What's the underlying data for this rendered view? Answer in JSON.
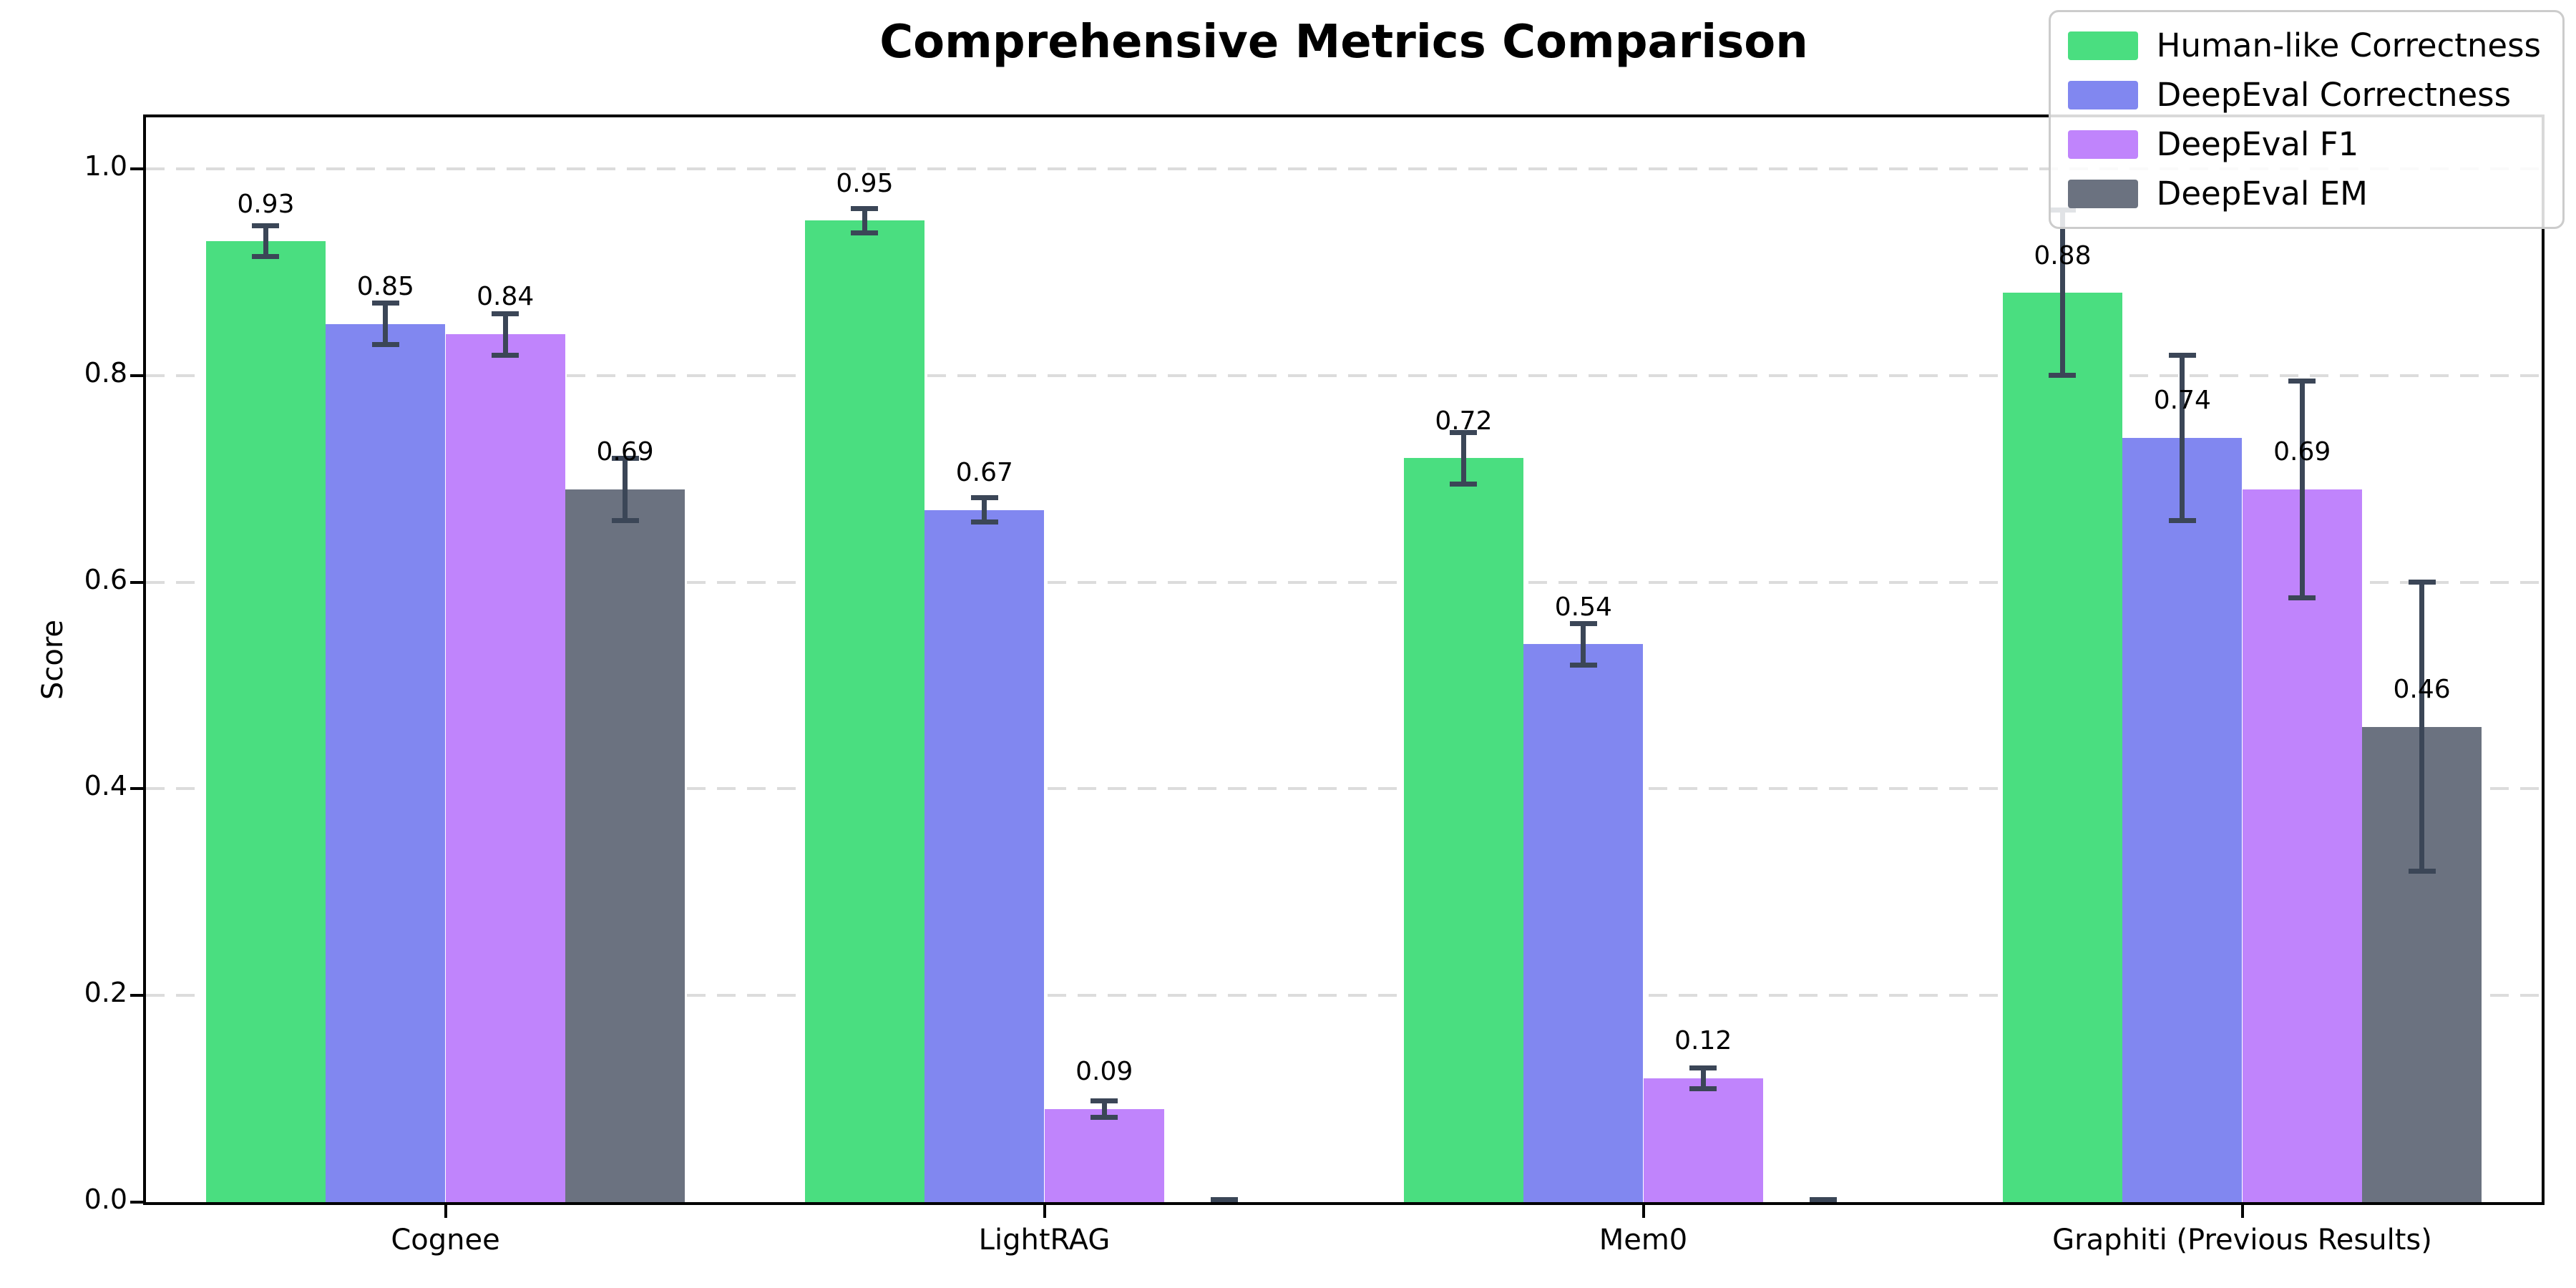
{
  "chart_data": {
    "type": "bar",
    "title": "Comprehensive Metrics Comparison",
    "xlabel": "",
    "ylabel": "Score",
    "ylim": [
      0,
      1.05
    ],
    "grid": "horizontal-dashed",
    "legend_position": "upper-right",
    "ytick_labels": [
      "0.0",
      "0.2",
      "0.4",
      "0.6",
      "0.8",
      "1.0"
    ],
    "yticks": [
      0.0,
      0.2,
      0.4,
      0.6,
      0.8,
      1.0
    ],
    "categories": [
      "Cognee",
      "LightRAG",
      "Mem0",
      "Graphiti (Previous Results)"
    ],
    "series": [
      {
        "name": "Human-like Correctness",
        "color": "#4ade80",
        "values": [
          0.93,
          0.95,
          0.72,
          0.88
        ],
        "errors": [
          0.015,
          0.012,
          0.025,
          0.08
        ],
        "labels": [
          "0.93",
          "0.95",
          "0.72",
          "0.88"
        ]
      },
      {
        "name": "DeepEval Correctness",
        "color": "#8187f0",
        "values": [
          0.85,
          0.67,
          0.54,
          0.74
        ],
        "errors": [
          0.02,
          0.012,
          0.02,
          0.08
        ],
        "labels": [
          "0.85",
          "0.67",
          "0.54",
          "0.74"
        ]
      },
      {
        "name": "DeepEval F1",
        "color": "#c084fc",
        "values": [
          0.84,
          0.09,
          0.12,
          0.69
        ],
        "errors": [
          0.02,
          0.008,
          0.01,
          0.105
        ],
        "labels": [
          "0.84",
          "0.09",
          "0.12",
          "0.69"
        ]
      },
      {
        "name": "DeepEval EM",
        "color": "#6b7280",
        "values": [
          0.69,
          0.0,
          0.0,
          0.46
        ],
        "errors": [
          0.03,
          0.002,
          0.002,
          0.14
        ],
        "labels": [
          "0.69",
          "",
          "",
          "0.46"
        ]
      }
    ],
    "error_bar_color": "#3b4657",
    "gridline_color": "#dcdcdc"
  }
}
